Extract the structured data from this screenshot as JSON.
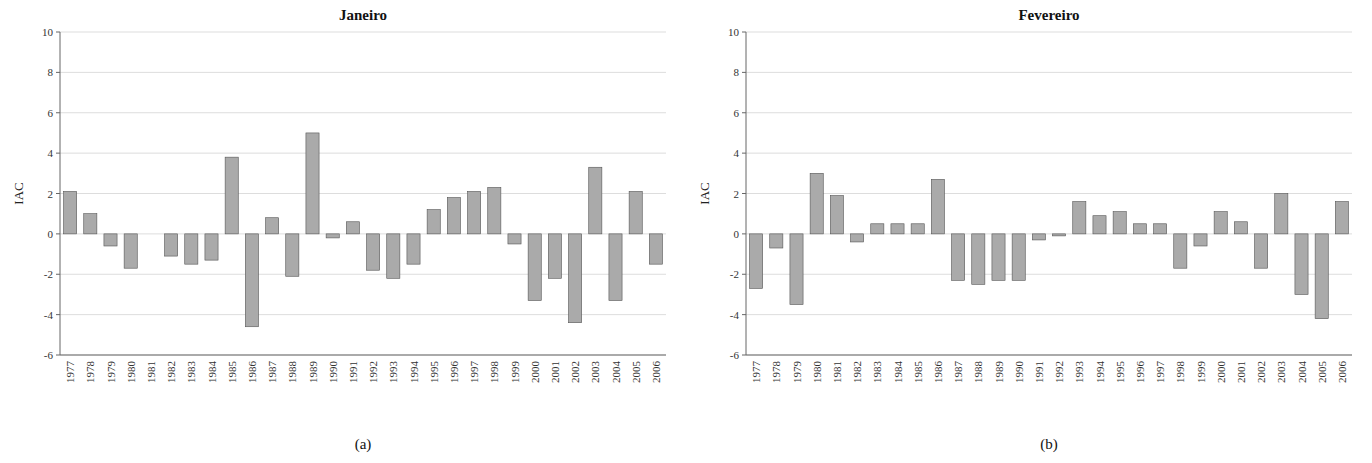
{
  "chart_data": [
    {
      "type": "bar",
      "title": "Janeiro",
      "ylabel": "IAC",
      "annotations": [
        "(a)"
      ],
      "categories": [
        "1977",
        "1978",
        "1979",
        "1980",
        "1981",
        "1982",
        "1983",
        "1984",
        "1985",
        "1986",
        "1987",
        "1988",
        "1989",
        "1990",
        "1991",
        "1992",
        "1993",
        "1994",
        "1995",
        "1996",
        "1997",
        "1998",
        "1999",
        "2000",
        "2001",
        "2002",
        "2003",
        "2004",
        "2005",
        "2006"
      ],
      "values": [
        2.1,
        1.0,
        -0.6,
        -1.7,
        0.0,
        -1.1,
        -1.5,
        -1.3,
        3.8,
        -4.6,
        0.8,
        -2.1,
        5.0,
        -0.2,
        0.6,
        -1.8,
        -2.2,
        -1.5,
        1.2,
        1.8,
        2.1,
        2.3,
        -0.5,
        -3.3,
        -2.2,
        -4.4,
        3.3,
        -3.3,
        2.1,
        -1.5
      ],
      "color": "#aaaaaa",
      "ylim": [
        -6,
        10
      ],
      "yticks": [
        -6,
        -4,
        -2,
        0,
        2,
        4,
        6,
        8,
        10
      ],
      "grid": true
    },
    {
      "type": "bar",
      "title": "Fevereiro",
      "ylabel": "IAC",
      "annotations": [
        "(b)"
      ],
      "categories": [
        "1977",
        "1978",
        "1979",
        "1980",
        "1981",
        "1982",
        "1983",
        "1984",
        "1985",
        "1986",
        "1987",
        "1988",
        "1989",
        "1990",
        "1991",
        "1992",
        "1993",
        "1994",
        "1995",
        "1996",
        "1997",
        "1998",
        "1999",
        "2000",
        "2001",
        "2002",
        "2003",
        "2004",
        "2005",
        "2006"
      ],
      "values": [
        -2.7,
        -0.7,
        -3.5,
        3.0,
        1.9,
        -0.4,
        0.5,
        0.5,
        0.5,
        2.7,
        -2.3,
        -2.5,
        -2.3,
        -2.3,
        -0.3,
        -0.1,
        1.6,
        0.9,
        1.1,
        0.5,
        0.5,
        -1.7,
        -0.6,
        1.1,
        0.6,
        -1.7,
        2.0,
        -3.0,
        -4.2,
        1.6
      ],
      "color": "#aaaaaa",
      "ylim": [
        -6,
        10
      ],
      "yticks": [
        -6,
        -4,
        -2,
        0,
        2,
        4,
        6,
        8,
        10
      ],
      "grid": true
    }
  ]
}
